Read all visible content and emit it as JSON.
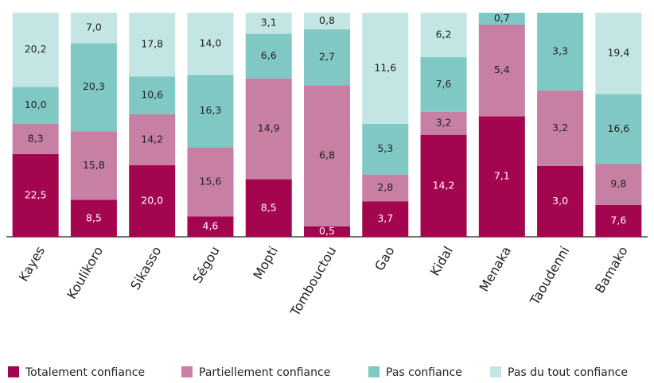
{
  "chart_data": {
    "type": "bar",
    "stacking": "percent",
    "categories": [
      "Kayes",
      "Koulikoro",
      "Sikasso",
      "Ségou",
      "Mopti",
      "Tombouctou",
      "Gao",
      "Kidal",
      "Menaka",
      "Taoudenni",
      "Bamako"
    ],
    "series": [
      {
        "name": "Totalement confiance",
        "color": "#a3064e",
        "values": [
          22.5,
          8.5,
          20.0,
          4.6,
          8.5,
          0.5,
          3.7,
          14.2,
          7.1,
          3.0,
          7.6
        ],
        "value_labels": [
          "22,5",
          "8,5",
          "20,0",
          "4,6",
          "8,5",
          "0,5",
          "3,7",
          "14,2",
          "7,1",
          "3,0",
          "7,6"
        ]
      },
      {
        "name": "Partiellement confiance",
        "color": "#c77fa3",
        "values": [
          8.3,
          15.8,
          14.2,
          15.6,
          14.9,
          6.8,
          2.8,
          3.2,
          5.4,
          3.2,
          9.8
        ],
        "value_labels": [
          "8,3",
          "15,8",
          "14,2",
          "15,6",
          "14,9",
          "6,8",
          "2,8",
          "3,2",
          "5,4",
          "3,2",
          "9,8"
        ]
      },
      {
        "name": "Pas confiance",
        "color": "#80c8c3",
        "values": [
          10.0,
          20.3,
          10.6,
          16.3,
          6.6,
          2.7,
          5.3,
          7.6,
          0.7,
          3.3,
          16.6
        ],
        "value_labels": [
          "10,0",
          "20,3",
          "10,6",
          "16,3",
          "6,6",
          "2,7",
          "5,3",
          "7,6",
          "0,7",
          "3,3",
          "16,6"
        ]
      },
      {
        "name": "Pas du tout confiance",
        "color": "#c3e6e5",
        "values": [
          20.2,
          7.0,
          17.8,
          14.0,
          3.1,
          0.8,
          11.6,
          6.2,
          null,
          null,
          19.4
        ],
        "value_labels": [
          "20,2",
          "7,0",
          "17,8",
          "14,0",
          "3,1",
          "0,8",
          "11,6",
          "6,2",
          null,
          null,
          "19,4"
        ]
      }
    ],
    "legend": "bottom"
  }
}
